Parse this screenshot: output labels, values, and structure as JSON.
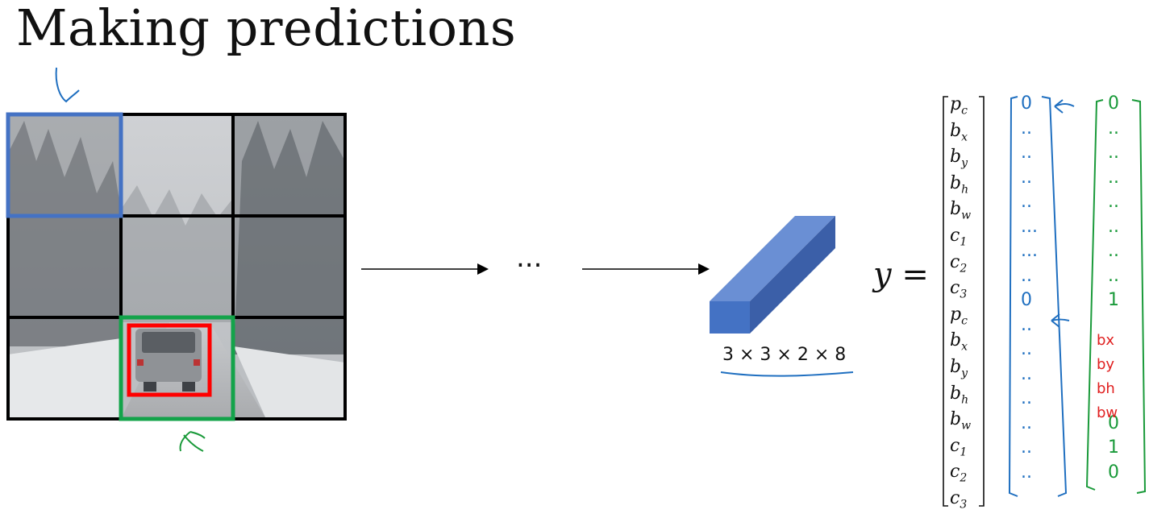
{
  "title": "Making predictions",
  "ellipsis": "...",
  "output_shape": "3 × 3 × 2 × 8",
  "y_equals": "y =",
  "vector_labels": [
    {
      "base": "p",
      "sub": "c"
    },
    {
      "base": "b",
      "sub": "x"
    },
    {
      "base": "b",
      "sub": "y"
    },
    {
      "base": "b",
      "sub": "h"
    },
    {
      "base": "b",
      "sub": "w"
    },
    {
      "base": "c",
      "sub": "1"
    },
    {
      "base": "c",
      "sub": "2"
    },
    {
      "base": "c",
      "sub": "3"
    },
    {
      "base": "p",
      "sub": "c"
    },
    {
      "base": "b",
      "sub": "x"
    },
    {
      "base": "b",
      "sub": "y"
    },
    {
      "base": "b",
      "sub": "h"
    },
    {
      "base": "b",
      "sub": "w"
    },
    {
      "base": "c",
      "sub": "1"
    },
    {
      "base": "c",
      "sub": "2"
    },
    {
      "base": "c",
      "sub": "3"
    }
  ],
  "blue_vector_values": [
    "0",
    "..",
    "..",
    "..",
    "..",
    "...",
    "...",
    "..",
    "0",
    "..",
    "..",
    "..",
    "..",
    "..",
    "..",
    ".."
  ],
  "green_vector_values": [
    "0",
    "..",
    "..",
    "..",
    "..",
    "..",
    "..",
    "..",
    "1",
    "",
    "",
    "",
    "",
    "0",
    "1",
    "0"
  ],
  "green_red_labels": [
    "bx",
    "by",
    "bh",
    "bw"
  ],
  "colors": {
    "blue_ink": "#1f6fc0",
    "green_ink": "#1a9a3a",
    "red_ink": "#e02020",
    "cell_blue": "#4472c4",
    "cell_green": "#13a34a",
    "box_red": "#ff0000",
    "volume_front": "#4472c4",
    "volume_top": "#6a8fd4",
    "volume_side": "#3b5fa8"
  },
  "grid": {
    "rows": 3,
    "cols": 3
  }
}
